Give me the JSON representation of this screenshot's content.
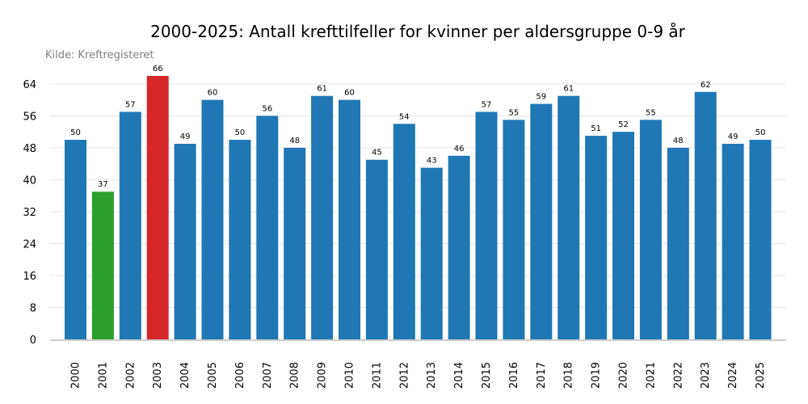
{
  "chart_data": {
    "type": "bar",
    "title": "2000-2025: Antall krefttilfeller for kvinner per aldersgruppe 0-9 år",
    "subtitle": "Kilde: Kreftregisteret",
    "xlabel": "",
    "ylabel": "",
    "categories": [
      "2000",
      "2001",
      "2002",
      "2003",
      "2004",
      "2005",
      "2006",
      "2007",
      "2008",
      "2009",
      "2010",
      "2011",
      "2012",
      "2013",
      "2014",
      "2015",
      "2016",
      "2017",
      "2018",
      "2019",
      "2020",
      "2021",
      "2022",
      "2023",
      "2024",
      "2025"
    ],
    "values": [
      50,
      37,
      57,
      66,
      49,
      60,
      50,
      56,
      48,
      61,
      60,
      45,
      54,
      43,
      46,
      57,
      55,
      59,
      61,
      51,
      52,
      55,
      48,
      62,
      49,
      50
    ],
    "ylim": [
      0,
      66
    ],
    "yticks": [
      0,
      8,
      16,
      24,
      32,
      40,
      48,
      56,
      64
    ],
    "grid": true,
    "colors": {
      "default": "#1f77b4",
      "min": "#2ca02c",
      "max": "#d62728",
      "grid": "#e6e6e6",
      "axis": "#cccccc"
    },
    "highlight": {
      "min_index": 1,
      "max_index": 3
    }
  }
}
